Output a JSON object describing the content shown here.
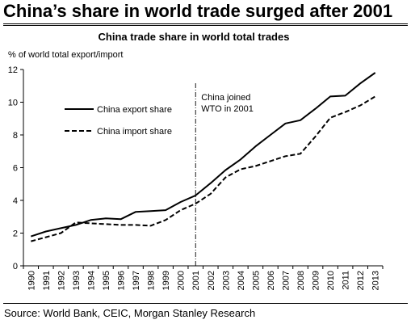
{
  "headline": "China’s share in world trade surged after 2001",
  "source": "Source: World Bank, CEIC, Morgan Stanley Research",
  "chart_data": {
    "type": "line",
    "title": "China trade share in world total trades",
    "ylabel": "% of world total export/import",
    "xlabel": "",
    "x": [
      "1990",
      "1991",
      "1992",
      "1993",
      "1994",
      "1995",
      "1996",
      "1997",
      "1998",
      "1999",
      "2000",
      "2001",
      "2002",
      "2003",
      "2004",
      "2005",
      "2006",
      "2007",
      "2008",
      "2009",
      "2010",
      "2011",
      "2012",
      "2013"
    ],
    "ylim": [
      0,
      12
    ],
    "yticks": [
      0,
      2,
      4,
      6,
      8,
      10,
      12
    ],
    "grid": false,
    "legend_position": "upper-left",
    "series": [
      {
        "name": "China export share",
        "style": "solid",
        "values": [
          1.8,
          2.1,
          2.3,
          2.5,
          2.8,
          2.9,
          2.85,
          3.3,
          3.35,
          3.4,
          3.9,
          4.3,
          5.05,
          5.85,
          6.5,
          7.3,
          8.0,
          8.7,
          8.9,
          9.6,
          10.35,
          10.4,
          11.15,
          11.8
        ]
      },
      {
        "name": "China import share",
        "style": "dashed",
        "values": [
          1.5,
          1.75,
          2.0,
          2.65,
          2.6,
          2.55,
          2.5,
          2.5,
          2.45,
          2.8,
          3.4,
          3.8,
          4.4,
          5.4,
          5.9,
          6.1,
          6.4,
          6.7,
          6.85,
          7.9,
          9.05,
          9.4,
          9.8,
          10.35
        ]
      }
    ],
    "annotations": [
      {
        "text_lines": [
          "China joined",
          "WTO in 2001"
        ],
        "x": "2001"
      }
    ]
  }
}
